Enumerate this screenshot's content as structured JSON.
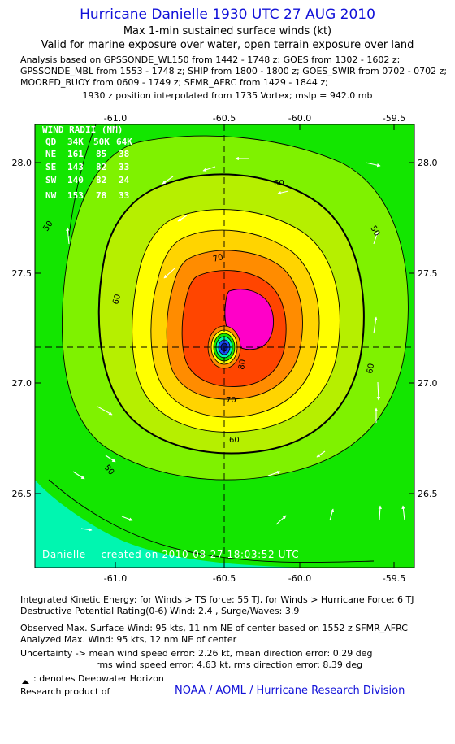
{
  "header": {
    "title": "Hurricane Danielle 1930 UTC 27 AUG 2010",
    "subtitle1": "Max 1-min sustained surface winds (kt)",
    "subtitle2": "Valid for marine exposure over water, open terrain exposure over land",
    "analysis_lines": [
      "Analysis based on GPSSONDE_WL150 from 1442 - 1748 z; GOES from 1302 - 1602 z;",
      "GPSSONDE_MBL from 1553 - 1748 z; SHIP from 1800 - 1800 z; GOES_SWIR from 0702 - 0702 z;",
      "MOORED_BUOY from 0609 - 1749 z; SFMR_AFRC from 1429 - 1844 z;"
    ],
    "position_note": "1930 z position interpolated from 1735 Vortex; mslp = 942.0 mb"
  },
  "map": {
    "lon_ticks": [
      "-61.0",
      "-60.5",
      "-60.0",
      "-59.5"
    ],
    "lat_ticks": [
      "28.0",
      "27.5",
      "27.0",
      "26.5"
    ],
    "contour_labels": [
      "50",
      "60",
      "70",
      "80",
      "60",
      "70",
      "50",
      "60",
      "60",
      "50"
    ],
    "wind_radii": {
      "title": "WIND RADII (NM)",
      "header": [
        "QD",
        "34K",
        "50K",
        "64K"
      ],
      "rows": [
        [
          "NE",
          "161",
          "85",
          "38"
        ],
        [
          "SE",
          "143",
          "82",
          "33"
        ],
        [
          "SW",
          "140",
          "82",
          "24"
        ],
        [
          "NW",
          "153",
          "78",
          "33"
        ]
      ]
    },
    "credit": "Danielle -- created on 2010-08-27 18:03:52 UTC",
    "colors": {
      "c_lt50": "#00f6b0",
      "c_50_60": "#13e600",
      "c_60_64": "#7ff200",
      "c_64_70": "#b6ef00",
      "c_70_80": "#ffff00",
      "c_80_90": "#ffd400",
      "c_90_100": "#ff8c00",
      "c_core": "#ff4500",
      "c_max": "#ff00c8",
      "c_eye": "#1a4cff"
    }
  },
  "footer": {
    "ike": "Integrated Kinetic Energy:  for Winds > TS force: 55 TJ,  for Winds > Hurricane Force: 6 TJ",
    "dpr": "Destructive Potential Rating(0-6)   Wind: 2.4 , Surge/Waves: 3.9",
    "obs_max": "Observed Max. Surface Wind: 95 kts, 11 nm NE of center based on 1552 z SFMR_AFRC",
    "ana_max": "Analyzed Max. Wind: 95 kts, 12 nm NE of center",
    "unc1": "Uncertainty -> mean wind speed error: 2.26 kt,   mean direction error: 0.29 deg",
    "unc2": "rms wind speed error: 4.63 kt,     rms direction error: 8.39 deg",
    "deepwater": ": denotes Deepwater Horizon",
    "research": "Research product of",
    "noaa": "NOAA / AOML / Hurricane Research Division"
  }
}
